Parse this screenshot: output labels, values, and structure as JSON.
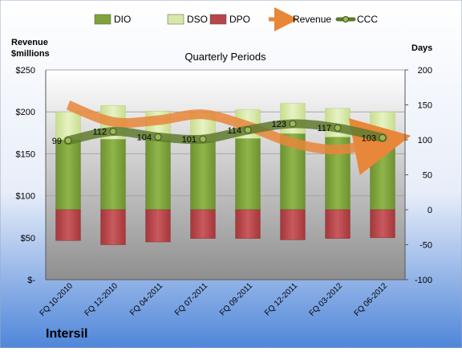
{
  "chart_data": {
    "type": "bar",
    "title": "Quarterly Periods",
    "company": "Intersil",
    "left_axis_label": [
      "Revenue",
      "$millions"
    ],
    "right_axis_label": "Days",
    "left_ylim": [
      0,
      250
    ],
    "right_ylim": [
      -100,
      200
    ],
    "left_ticks": [
      "$-",
      "$50",
      "$100",
      "$150",
      "$200",
      "$250"
    ],
    "right_ticks": [
      "-100",
      "-50",
      "0",
      "50",
      "100",
      "150",
      "200"
    ],
    "grid": true,
    "legend_position": "top",
    "categories": [
      "FQ 10-2010",
      "FQ 12-2010",
      "FQ 04-2011",
      "FQ 07-2011",
      "FQ 09-2011",
      "FQ 12-2011",
      "FQ 03-2012",
      "FQ 06-2012"
    ],
    "legend": [
      {
        "name": "DIO",
        "color": "#7fa33a"
      },
      {
        "name": "DSO",
        "color": "#d7e8a8"
      },
      {
        "name": "DPO",
        "color": "#b8454a"
      },
      {
        "name": "Revenue",
        "color": "#e8863a"
      },
      {
        "name": "CCC",
        "color": "#5f7a2e"
      }
    ],
    "series": [
      {
        "name": "DIO",
        "axis": "right",
        "values": [
          100,
          101,
          100,
          98,
          102,
          109,
          104,
          100
        ]
      },
      {
        "name": "DSO",
        "axis": "right",
        "values": [
          40,
          48,
          41,
          41,
          41,
          43,
          41,
          40
        ]
      },
      {
        "name": "DPO",
        "axis": "right",
        "values": [
          -44,
          -50,
          -46,
          -41,
          -41,
          -43,
          -41,
          -40
        ]
      },
      {
        "name": "Revenue",
        "axis": "left",
        "values": [
          208,
          188,
          190,
          197,
          183,
          163,
          155,
          165
        ]
      },
      {
        "name": "CCC",
        "axis": "right",
        "values": [
          99,
          112,
          104,
          101,
          114,
          123,
          117,
          103
        ]
      }
    ],
    "ccc_labels": [
      "99",
      "112",
      "104",
      "101",
      "114",
      "123",
      "117",
      "103"
    ]
  }
}
